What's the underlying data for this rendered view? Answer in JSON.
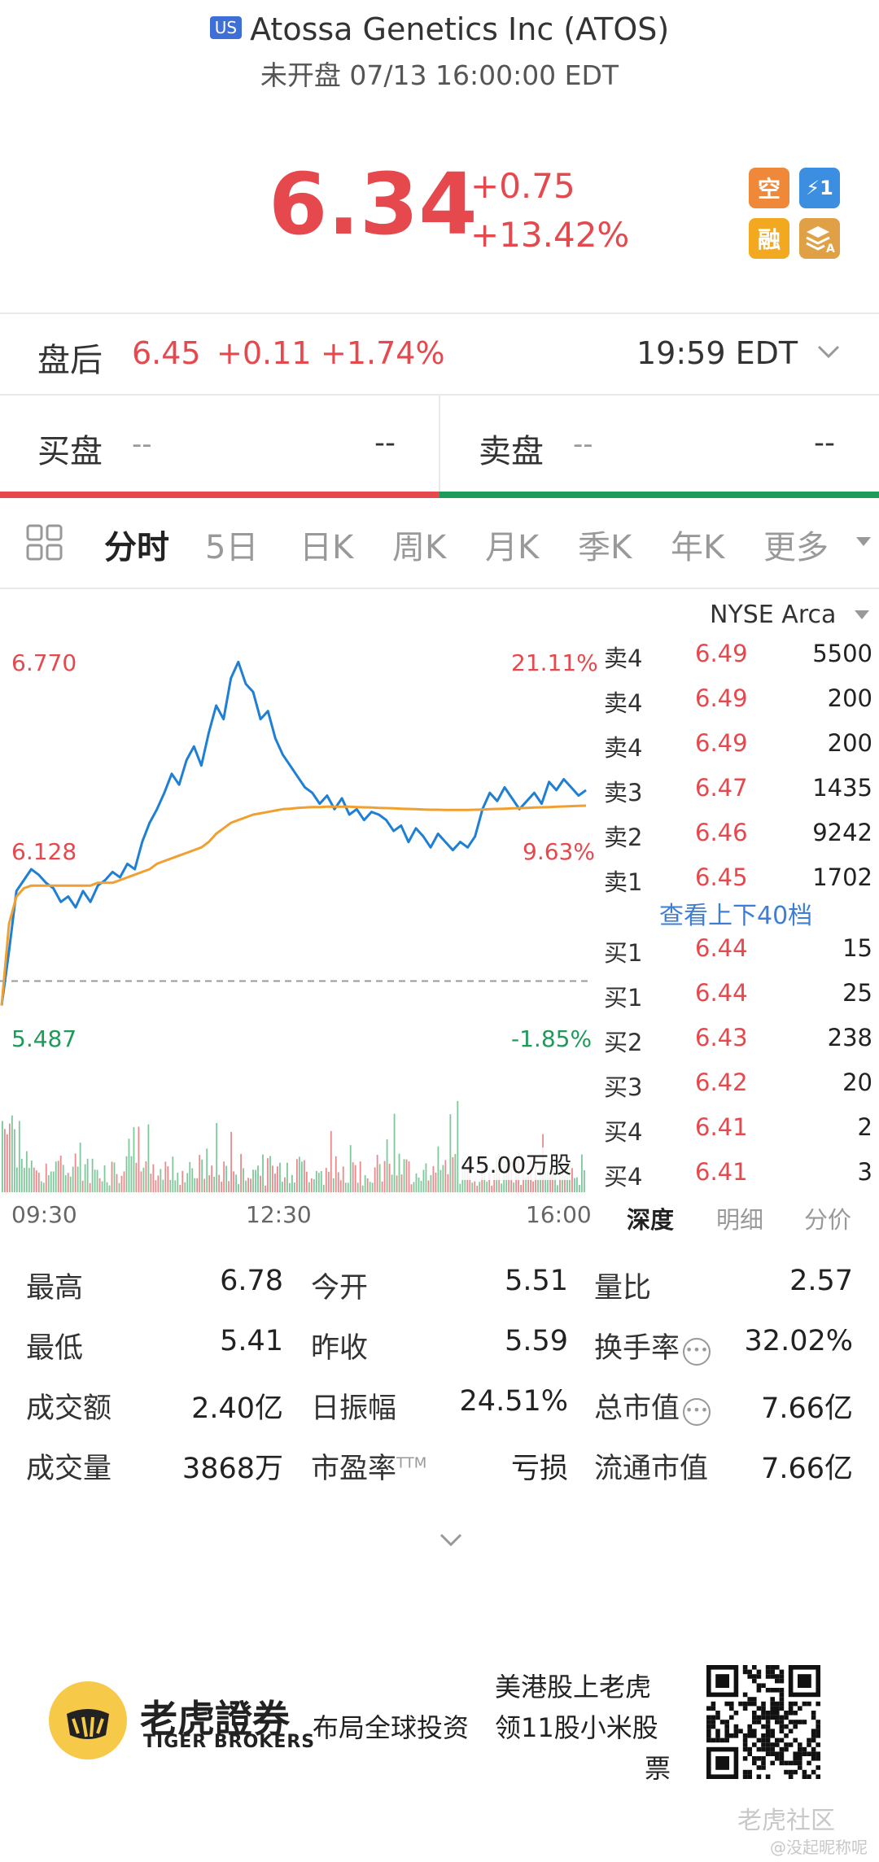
{
  "header": {
    "market_badge": "US",
    "title": "Atossa Genetics Inc (ATOS)",
    "subtitle": "未开盘 07/13 16:00:00 EDT"
  },
  "quote": {
    "price": "6.34",
    "change": "+0.75",
    "change_pct": "+13.42%",
    "tags": [
      {
        "icon": "short-icon",
        "text": "空",
        "color": "#f0883a"
      },
      {
        "icon": "lightning-level1-icon",
        "text": "⚡1",
        "color": "#3b8ee0"
      },
      {
        "icon": "margin-icon",
        "text": "融",
        "color": "#f2a91f"
      },
      {
        "icon": "layers-a-icon",
        "text": "A",
        "color": "#e0a046"
      }
    ]
  },
  "after_hours": {
    "label": "盘后",
    "price": "6.45",
    "change": "+0.11",
    "change_pct": "+1.74%",
    "time": "19:59 EDT"
  },
  "bid_ask": {
    "bid_label": "买盘",
    "bid_mid": "--",
    "bid_val": "--",
    "ask_label": "卖盘",
    "ask_mid": "--",
    "ask_val": "--"
  },
  "chart_tabs": [
    "分时",
    "5日",
    "日K",
    "周K",
    "月K",
    "季K",
    "年K",
    "更多"
  ],
  "chart_tab_active": 0,
  "exchange": "NYSE Arca",
  "chart_data": {
    "type": "line",
    "title": "",
    "x_ticks": [
      "09:30",
      "12:30",
      "16:00"
    ],
    "y_left_labels": [
      "6.770",
      "6.128",
      "5.487"
    ],
    "y_right_labels": [
      "21.11%",
      "9.63%",
      "-1.85%"
    ],
    "ylim": [
      5.487,
      6.77
    ],
    "prev_close": 5.59,
    "volume_label": "45.00万股",
    "series": [
      {
        "color": "#1f7fd4",
        "values": [
          5.5,
          5.7,
          5.92,
          5.96,
          6.0,
          5.98,
          5.95,
          5.93,
          5.88,
          5.9,
          5.86,
          5.92,
          5.88,
          5.94,
          5.96,
          5.99,
          5.97,
          6.02,
          6.0,
          6.1,
          6.17,
          6.22,
          6.28,
          6.35,
          6.31,
          6.4,
          6.45,
          6.38,
          6.5,
          6.6,
          6.55,
          6.7,
          6.76,
          6.68,
          6.65,
          6.55,
          6.58,
          6.48,
          6.42,
          6.38,
          6.34,
          6.3,
          6.28,
          6.24,
          6.27,
          6.22,
          6.26,
          6.2,
          6.22,
          6.18,
          6.21,
          6.2,
          6.18,
          6.14,
          6.16,
          6.1,
          6.15,
          6.12,
          6.08,
          6.13,
          6.1,
          6.07,
          6.1,
          6.08,
          6.12,
          6.22,
          6.28,
          6.25,
          6.3,
          6.26,
          6.22,
          6.25,
          6.28,
          6.24,
          6.32,
          6.29,
          6.33,
          6.3,
          6.27,
          6.29
        ]
      },
      {
        "color": "#f0a030",
        "values": [
          5.5,
          5.8,
          5.9,
          5.93,
          5.94,
          5.94,
          5.94,
          5.94,
          5.94,
          5.94,
          5.94,
          5.94,
          5.94,
          5.95,
          5.95,
          5.95,
          5.96,
          5.97,
          5.98,
          5.99,
          6.0,
          6.02,
          6.03,
          6.04,
          6.05,
          6.06,
          6.07,
          6.08,
          6.1,
          6.13,
          6.15,
          6.17,
          6.18,
          6.19,
          6.2,
          6.205,
          6.21,
          6.215,
          6.22,
          6.222,
          6.225,
          6.226,
          6.228,
          6.228,
          6.229,
          6.229,
          6.229,
          6.229,
          6.228,
          6.227,
          6.226,
          6.225,
          6.224,
          6.223,
          6.222,
          6.221,
          6.22,
          6.219,
          6.218,
          6.218,
          6.217,
          6.217,
          6.217,
          6.217,
          6.218,
          6.219,
          6.22,
          6.221,
          6.222,
          6.223,
          6.224,
          6.225,
          6.226,
          6.227,
          6.228,
          6.229,
          6.23,
          6.231,
          6.232,
          6.233
        ]
      }
    ]
  },
  "order_book": {
    "asks": [
      {
        "side": "卖4",
        "price": "6.49",
        "vol": "5500"
      },
      {
        "side": "卖4",
        "price": "6.49",
        "vol": "200"
      },
      {
        "side": "卖4",
        "price": "6.49",
        "vol": "200"
      },
      {
        "side": "卖3",
        "price": "6.47",
        "vol": "1435"
      },
      {
        "side": "卖2",
        "price": "6.46",
        "vol": "9242"
      },
      {
        "side": "卖1",
        "price": "6.45",
        "vol": "1702"
      }
    ],
    "more_link": "查看上下40档",
    "bids": [
      {
        "side": "买1",
        "price": "6.44",
        "vol": "15"
      },
      {
        "side": "买1",
        "price": "6.44",
        "vol": "25"
      },
      {
        "side": "买2",
        "price": "6.43",
        "vol": "238"
      },
      {
        "side": "买3",
        "price": "6.42",
        "vol": "20"
      },
      {
        "side": "买4",
        "price": "6.41",
        "vol": "2"
      },
      {
        "side": "买4",
        "price": "6.41",
        "vol": "3"
      }
    ],
    "tabs": [
      "深度",
      "明细",
      "分价"
    ],
    "active_tab": 0
  },
  "stats": [
    [
      {
        "label": "最高",
        "value": "6.78"
      },
      {
        "label": "今开",
        "value": "5.51"
      },
      {
        "label": "量比",
        "value": "2.57"
      }
    ],
    [
      {
        "label": "最低",
        "value": "5.41"
      },
      {
        "label": "昨收",
        "value": "5.59"
      },
      {
        "label": "换手率",
        "value": "32.02%",
        "info": true
      }
    ],
    [
      {
        "label": "成交额",
        "value": "2.40亿"
      },
      {
        "label": "日振幅",
        "value": "24.51%"
      },
      {
        "label": "总市值",
        "value": "7.66亿",
        "info": true
      }
    ],
    [
      {
        "label": "成交量",
        "value": "3868万"
      },
      {
        "label": "市盈率",
        "sup": "TTM",
        "value": "亏损"
      },
      {
        "label": "流通市值",
        "value": "7.66亿"
      }
    ]
  ],
  "footer": {
    "brand_cn": "老虎證券",
    "brand_en": "TIGER BROKERS",
    "slogan_line1_left": "美港股上老虎",
    "slogan_line2": "布局全球投资",
    "slogan_line2_right": "领11股小米股",
    "slogan_line3": "票",
    "watermark": "老虎社区",
    "watermark_user": "@没起昵称呢"
  }
}
